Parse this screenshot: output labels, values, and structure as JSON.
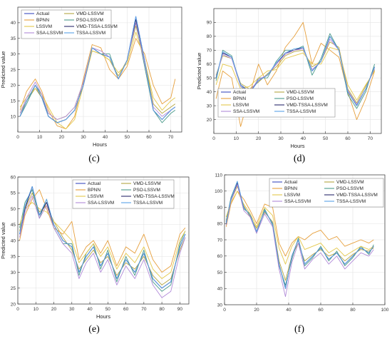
{
  "legend_names": [
    "Actual",
    "VMD-LSSVM",
    "BPNN",
    "PSO-LSSVM",
    "LSSVM",
    "VMD-TSSA-LSSVM",
    "SSA-LSSVM",
    "TSSA-LSSVM"
  ],
  "series_colors": [
    "#3b4cc0",
    "#b5a642",
    "#e69f3c",
    "#4a9a8a",
    "#e4c84a",
    "#2b2b6b",
    "#b18ad8",
    "#5aa3e8"
  ],
  "chart_data": [
    {
      "type": "line",
      "panel_label": "(c)",
      "xlabel": "Hours",
      "ylabel": "Predicted value",
      "xlim": [
        0,
        75
      ],
      "ylim": [
        5,
        45
      ],
      "xticks": [
        0,
        10,
        20,
        30,
        40,
        50,
        60,
        70
      ],
      "yticks": [
        10,
        15,
        20,
        25,
        30,
        35,
        40
      ],
      "grid": true,
      "legend_placement": "top-left",
      "x": [
        1,
        4,
        8,
        11,
        14,
        18,
        22,
        26,
        30,
        34,
        38,
        42,
        46,
        50,
        54,
        58,
        62,
        66,
        70,
        72
      ],
      "series": [
        {
          "name": "Actual",
          "values": [
            10,
            15,
            20,
            16,
            10,
            8,
            9,
            12,
            20,
            32,
            30,
            29,
            22,
            28,
            42,
            28,
            12,
            9,
            12,
            13
          ]
        },
        {
          "name": "VMD-LSSVM",
          "values": [
            11,
            15,
            19,
            16,
            11,
            9,
            10,
            13,
            21,
            31,
            30,
            28,
            23,
            28,
            39,
            28,
            14,
            11,
            13,
            14
          ]
        },
        {
          "name": "BPNN",
          "values": [
            12,
            18,
            22,
            18,
            12,
            7,
            6,
            10,
            22,
            33,
            32,
            25,
            22,
            26,
            35,
            30,
            20,
            14,
            16,
            22
          ]
        },
        {
          "name": "PSO-LSSVM",
          "values": [
            10,
            14,
            20,
            17,
            10,
            8,
            9,
            12,
            20,
            32,
            30,
            30,
            22,
            28,
            40,
            26,
            12,
            8,
            11,
            12
          ]
        },
        {
          "name": "LSSVM",
          "values": [
            13,
            16,
            19,
            17,
            13,
            8,
            6,
            9,
            20,
            31,
            30,
            28,
            24,
            27,
            37,
            28,
            16,
            12,
            15,
            16
          ]
        },
        {
          "name": "VMD-TSSA-LSSVM",
          "values": [
            10,
            15,
            20,
            16,
            10,
            8,
            9,
            12,
            20,
            32,
            30,
            29,
            22,
            28,
            41,
            28,
            12,
            9,
            12,
            13
          ]
        },
        {
          "name": "SSA-LSSVM",
          "values": [
            11,
            16,
            21,
            17,
            11,
            9,
            10,
            13,
            21,
            32,
            31,
            29,
            22,
            28,
            40,
            27,
            13,
            10,
            12,
            13
          ]
        },
        {
          "name": "TSSA-LSSVM",
          "values": [
            10,
            15,
            20,
            16,
            10,
            8,
            9,
            12,
            20,
            32,
            30,
            29,
            22,
            28,
            42,
            28,
            12,
            9,
            12,
            13
          ]
        }
      ]
    },
    {
      "type": "line",
      "panel_label": "(d)",
      "xlabel": "Hours",
      "ylabel": "Predicted value",
      "xlim": [
        0,
        75
      ],
      "ylim": [
        10,
        100
      ],
      "xticks": [
        0,
        10,
        20,
        30,
        40,
        50,
        60,
        70
      ],
      "yticks": [
        20,
        30,
        40,
        50,
        60,
        70,
        80,
        90
      ],
      "grid": true,
      "legend_placement": "bottom-left",
      "x": [
        1,
        4,
        8,
        12,
        16,
        20,
        24,
        28,
        32,
        36,
        40,
        44,
        48,
        52,
        56,
        60,
        64,
        68,
        72
      ],
      "series": [
        {
          "name": "Actual",
          "values": [
            50,
            68,
            65,
            45,
            40,
            48,
            52,
            60,
            68,
            70,
            72,
            55,
            62,
            80,
            70,
            40,
            30,
            42,
            58
          ]
        },
        {
          "name": "VMD-LSSVM",
          "values": [
            52,
            66,
            64,
            46,
            42,
            47,
            53,
            58,
            66,
            69,
            70,
            58,
            62,
            76,
            72,
            42,
            32,
            44,
            56
          ]
        },
        {
          "name": "BPNN",
          "values": [
            35,
            55,
            50,
            15,
            38,
            60,
            45,
            55,
            72,
            80,
            90,
            60,
            75,
            70,
            65,
            40,
            20,
            35,
            55
          ]
        },
        {
          "name": "PSO-LSSVM",
          "values": [
            48,
            70,
            66,
            44,
            38,
            50,
            50,
            62,
            70,
            70,
            73,
            52,
            64,
            82,
            70,
            38,
            28,
            40,
            60
          ]
        },
        {
          "name": "LSSVM",
          "values": [
            45,
            60,
            58,
            42,
            44,
            50,
            55,
            56,
            64,
            66,
            68,
            60,
            60,
            72,
            70,
            45,
            34,
            45,
            55
          ]
        },
        {
          "name": "VMD-TSSA-LSSVM",
          "values": [
            50,
            68,
            65,
            45,
            40,
            48,
            52,
            60,
            68,
            70,
            72,
            55,
            62,
            80,
            70,
            40,
            30,
            42,
            58
          ]
        },
        {
          "name": "SSA-LSSVM",
          "values": [
            51,
            67,
            64,
            44,
            40,
            49,
            52,
            60,
            67,
            70,
            71,
            56,
            62,
            78,
            70,
            41,
            31,
            42,
            57
          ]
        },
        {
          "name": "TSSA-LSSVM",
          "values": [
            50,
            69,
            65,
            45,
            39,
            48,
            52,
            61,
            68,
            71,
            72,
            55,
            62,
            80,
            70,
            40,
            30,
            42,
            58
          ]
        }
      ]
    },
    {
      "type": "line",
      "panel_label": "(e)",
      "xlabel": "Hours",
      "ylabel": "Predicted value",
      "xlim": [
        0,
        95
      ],
      "ylim": [
        20,
        60
      ],
      "xticks": [
        0,
        10,
        20,
        30,
        40,
        50,
        60,
        70,
        80,
        90
      ],
      "yticks": [
        20,
        25,
        30,
        35,
        40,
        45,
        50,
        55,
        60
      ],
      "grid": true,
      "legend_placement": "top-right",
      "x": [
        1,
        4,
        8,
        12,
        16,
        20,
        25,
        30,
        34,
        38,
        42,
        46,
        50,
        55,
        60,
        65,
        70,
        75,
        80,
        85,
        90,
        93
      ],
      "series": [
        {
          "name": "Actual",
          "values": [
            42,
            50,
            57,
            48,
            52,
            45,
            40,
            38,
            30,
            35,
            38,
            32,
            36,
            28,
            34,
            30,
            36,
            28,
            25,
            27,
            38,
            42
          ]
        },
        {
          "name": "VMD-LSSVM",
          "values": [
            43,
            50,
            55,
            49,
            51,
            46,
            41,
            37,
            31,
            34,
            37,
            33,
            35,
            29,
            33,
            31,
            35,
            29,
            26,
            28,
            37,
            41
          ]
        },
        {
          "name": "BPNN",
          "values": [
            40,
            48,
            53,
            56,
            50,
            44,
            42,
            46,
            34,
            38,
            40,
            36,
            40,
            32,
            38,
            36,
            42,
            34,
            30,
            32,
            42,
            44
          ]
        },
        {
          "name": "PSO-LSSVM",
          "values": [
            44,
            52,
            56,
            47,
            53,
            44,
            39,
            39,
            29,
            36,
            39,
            31,
            37,
            27,
            35,
            29,
            37,
            27,
            24,
            26,
            39,
            43
          ]
        },
        {
          "name": "LSSVM",
          "values": [
            45,
            50,
            52,
            50,
            49,
            46,
            43,
            40,
            33,
            36,
            39,
            35,
            38,
            31,
            36,
            33,
            38,
            31,
            28,
            30,
            40,
            43
          ]
        },
        {
          "name": "VMD-TSSA-LSSVM",
          "values": [
            42,
            50,
            57,
            48,
            52,
            45,
            40,
            38,
            30,
            35,
            38,
            32,
            36,
            28,
            34,
            30,
            36,
            28,
            25,
            27,
            38,
            42
          ]
        },
        {
          "name": "SSA-LSSVM",
          "values": [
            41,
            49,
            54,
            47,
            51,
            44,
            39,
            36,
            28,
            33,
            36,
            30,
            34,
            26,
            32,
            28,
            34,
            26,
            22,
            24,
            36,
            41
          ]
        },
        {
          "name": "TSSA-LSSVM",
          "values": [
            42,
            51,
            57,
            48,
            53,
            45,
            40,
            38,
            30,
            35,
            38,
            32,
            36,
            28,
            34,
            30,
            36,
            28,
            25,
            27,
            38,
            42
          ]
        }
      ]
    },
    {
      "type": "line",
      "panel_label": "(f)",
      "xlabel": "",
      "ylabel": "",
      "xlim": [
        0,
        100
      ],
      "ylim": [
        30,
        110
      ],
      "xticks": [
        0,
        20,
        40,
        60,
        80,
        100
      ],
      "yticks": [
        30,
        40,
        50,
        60,
        70,
        80,
        90,
        100,
        110
      ],
      "grid": true,
      "legend_placement": "top-right",
      "x": [
        1,
        4,
        8,
        12,
        16,
        20,
        25,
        30,
        34,
        38,
        42,
        46,
        50,
        55,
        60,
        65,
        70,
        75,
        80,
        85,
        90,
        93
      ],
      "series": [
        {
          "name": "Actual",
          "values": [
            80,
            95,
            105,
            90,
            85,
            75,
            88,
            80,
            55,
            40,
            60,
            70,
            55,
            60,
            65,
            58,
            62,
            55,
            60,
            65,
            62,
            66
          ]
        },
        {
          "name": "VMD-LSSVM",
          "values": [
            82,
            94,
            103,
            91,
            84,
            77,
            87,
            81,
            57,
            45,
            60,
            68,
            57,
            61,
            64,
            60,
            62,
            57,
            61,
            64,
            63,
            65
          ]
        },
        {
          "name": "BPNN",
          "values": [
            78,
            92,
            100,
            95,
            88,
            80,
            92,
            90,
            68,
            60,
            68,
            72,
            70,
            74,
            76,
            70,
            72,
            66,
            68,
            70,
            68,
            70
          ]
        },
        {
          "name": "PSO-LSSVM",
          "values": [
            81,
            96,
            106,
            89,
            86,
            74,
            89,
            79,
            54,
            42,
            58,
            71,
            54,
            59,
            66,
            57,
            63,
            54,
            59,
            66,
            61,
            67
          ]
        },
        {
          "name": "LSSVM",
          "values": [
            84,
            93,
            100,
            92,
            86,
            78,
            90,
            85,
            65,
            55,
            66,
            72,
            64,
            66,
            68,
            62,
            65,
            60,
            63,
            66,
            64,
            66
          ]
        },
        {
          "name": "VMD-TSSA-LSSVM",
          "values": [
            80,
            95,
            105,
            90,
            85,
            75,
            88,
            80,
            55,
            40,
            60,
            70,
            55,
            60,
            65,
            58,
            62,
            55,
            60,
            65,
            62,
            66
          ]
        },
        {
          "name": "SSA-LSSVM",
          "values": [
            79,
            94,
            104,
            88,
            84,
            74,
            86,
            78,
            52,
            35,
            56,
            68,
            52,
            58,
            62,
            55,
            60,
            52,
            57,
            62,
            60,
            64
          ]
        },
        {
          "name": "TSSA-LSSVM",
          "values": [
            80,
            95,
            106,
            90,
            85,
            75,
            88,
            80,
            55,
            40,
            60,
            70,
            55,
            60,
            65,
            58,
            62,
            55,
            60,
            65,
            62,
            66
          ]
        }
      ]
    }
  ]
}
